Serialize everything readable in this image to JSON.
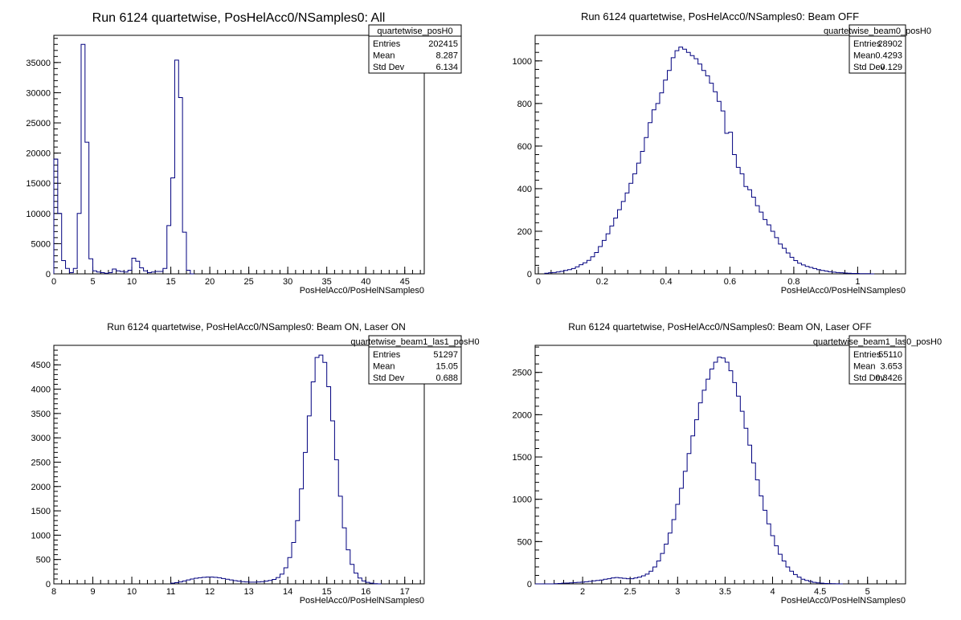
{
  "chart_data": [
    {
      "type": "histogram",
      "title": "Run 6124 quartetwise, PosHelAcc0/NSamples0: All",
      "xlabel": "PosHelAcc0/PosHelNSamples0",
      "ylabel": "",
      "xlim": [
        0,
        47.5
      ],
      "ylim": [
        0,
        39500
      ],
      "xticks": [
        0,
        5,
        10,
        15,
        20,
        25,
        30,
        35,
        40,
        45
      ],
      "yticks": [
        0,
        5000,
        10000,
        15000,
        20000,
        25000,
        30000,
        35000
      ],
      "line_color": "#00007f",
      "bins": {
        "x0": 0,
        "width": 0.5,
        "counts": [
          19000,
          10000,
          2200,
          900,
          200,
          900,
          10000,
          38000,
          21800,
          2500,
          500,
          300,
          200,
          100,
          200,
          800,
          500,
          400,
          300,
          600,
          2600,
          2100,
          1000,
          500,
          200,
          300,
          400,
          400,
          900,
          8000,
          15900,
          35400,
          29200,
          6900,
          600,
          0
        ]
      },
      "stats": {
        "name": "quartetwise_posH0",
        "entries_label": "Entries",
        "entries": "202415",
        "mean_label": "Mean",
        "mean": "8.287",
        "std_label": "Std Dev",
        "std": "6.134"
      }
    },
    {
      "type": "histogram",
      "title": "Run 6124 quartetwise, PosHelAcc0/NSamples0: Beam OFF",
      "xlabel": "PosHelAcc0/PosHelNSamples0",
      "ylabel": "",
      "xlim": [
        -0.01,
        1.15
      ],
      "ylim": [
        0,
        1120
      ],
      "xticks": [
        0,
        0.2,
        0.4,
        0.6,
        0.8,
        1
      ],
      "yticks": [
        0,
        200,
        400,
        600,
        800,
        1000
      ],
      "line_color": "#00007f",
      "bins": {
        "x0": 0.02,
        "width": 0.012,
        "counts": [
          3,
          5,
          6,
          9,
          12,
          16,
          20,
          25,
          33,
          43,
          52,
          63,
          80,
          100,
          128,
          157,
          188,
          225,
          262,
          301,
          340,
          380,
          425,
          470,
          520,
          575,
          640,
          710,
          770,
          800,
          850,
          910,
          955,
          1015,
          1048,
          1065,
          1055,
          1040,
          1025,
          1010,
          985,
          955,
          930,
          895,
          855,
          810,
          765,
          660,
          665,
          560,
          500,
          470,
          410,
          395,
          360,
          320,
          290,
          255,
          230,
          200,
          170,
          140,
          120,
          98,
          78,
          62,
          50,
          42,
          35,
          30,
          25,
          20,
          16,
          13,
          10,
          8,
          6,
          5,
          4,
          3,
          2,
          2,
          1,
          1,
          1,
          0
        ]
      },
      "stats": {
        "name": "quartetwise_beam0_posH0",
        "entries_label": "Entries",
        "entries": "28902",
        "mean_label": "Mean",
        "mean": "0.4293",
        "std_label": "Std Dev",
        "std": "0.129"
      }
    },
    {
      "type": "histogram",
      "title": "Run 6124 quartetwise, PosHelAcc0/NSamples0: Beam ON, Laser ON",
      "xlabel": "PosHelAcc0/PosHelNSamples0",
      "ylabel": "",
      "xlim": [
        8,
        17.5
      ],
      "ylim": [
        0,
        4900
      ],
      "xticks": [
        8,
        9,
        10,
        11,
        12,
        13,
        14,
        15,
        16,
        17
      ],
      "yticks": [
        0,
        500,
        1000,
        1500,
        2000,
        2500,
        3000,
        3500,
        4000,
        4500
      ],
      "line_color": "#00007f",
      "bins": {
        "x0": 11.0,
        "width": 0.1,
        "counts": [
          15,
          25,
          40,
          60,
          80,
          100,
          115,
          125,
          135,
          140,
          140,
          135,
          125,
          110,
          95,
          80,
          65,
          55,
          45,
          40,
          35,
          35,
          40,
          45,
          55,
          70,
          90,
          130,
          200,
          330,
          540,
          850,
          1300,
          1950,
          2700,
          3450,
          4150,
          4650,
          4700,
          4550,
          4050,
          3350,
          2550,
          1800,
          1150,
          700,
          400,
          220,
          120,
          60,
          30,
          15,
          5,
          0
        ]
      },
      "stats": {
        "name": "quartetwise_beam1_las1_posH0",
        "entries_label": "Entries",
        "entries": "51297",
        "mean_label": "Mean",
        "mean": "15.05",
        "std_label": "Std Dev",
        "std": "0.688"
      }
    },
    {
      "type": "histogram",
      "title": "Run 6124 quartetwise, PosHelAcc0/NSamples0: Beam ON, Laser OFF",
      "xlabel": "PosHelAcc0/PosHelNSamples0",
      "ylabel": "",
      "xlim": [
        1.5,
        5.4
      ],
      "ylim": [
        0,
        2820
      ],
      "xticks": [
        2,
        2.5,
        3,
        3.5,
        4,
        4.5,
        5
      ],
      "yticks": [
        0,
        500,
        1000,
        1500,
        2000,
        2500
      ],
      "line_color": "#00007f",
      "bins": {
        "x0": 1.5,
        "width": 0.04,
        "counts": [
          0,
          0,
          0,
          0,
          0,
          2,
          5,
          8,
          10,
          12,
          15,
          18,
          20,
          25,
          30,
          35,
          40,
          45,
          55,
          60,
          70,
          75,
          70,
          65,
          60,
          60,
          70,
          80,
          95,
          115,
          150,
          200,
          270,
          360,
          470,
          600,
          760,
          940,
          1130,
          1330,
          1540,
          1750,
          1940,
          2140,
          2290,
          2420,
          2540,
          2620,
          2680,
          2670,
          2620,
          2520,
          2380,
          2220,
          2040,
          1840,
          1640,
          1430,
          1230,
          1040,
          870,
          710,
          570,
          450,
          350,
          270,
          200,
          150,
          110,
          80,
          55,
          40,
          28,
          18,
          12,
          8,
          5,
          3,
          2,
          1,
          0
        ]
      },
      "stats": {
        "name": "quartetwise_beam1_las0_posH0",
        "entries_label": "Entries",
        "entries": "55110",
        "mean_label": "Mean",
        "mean": "3.653",
        "std_label": "Std Dev",
        "std": "0.3426"
      }
    }
  ]
}
